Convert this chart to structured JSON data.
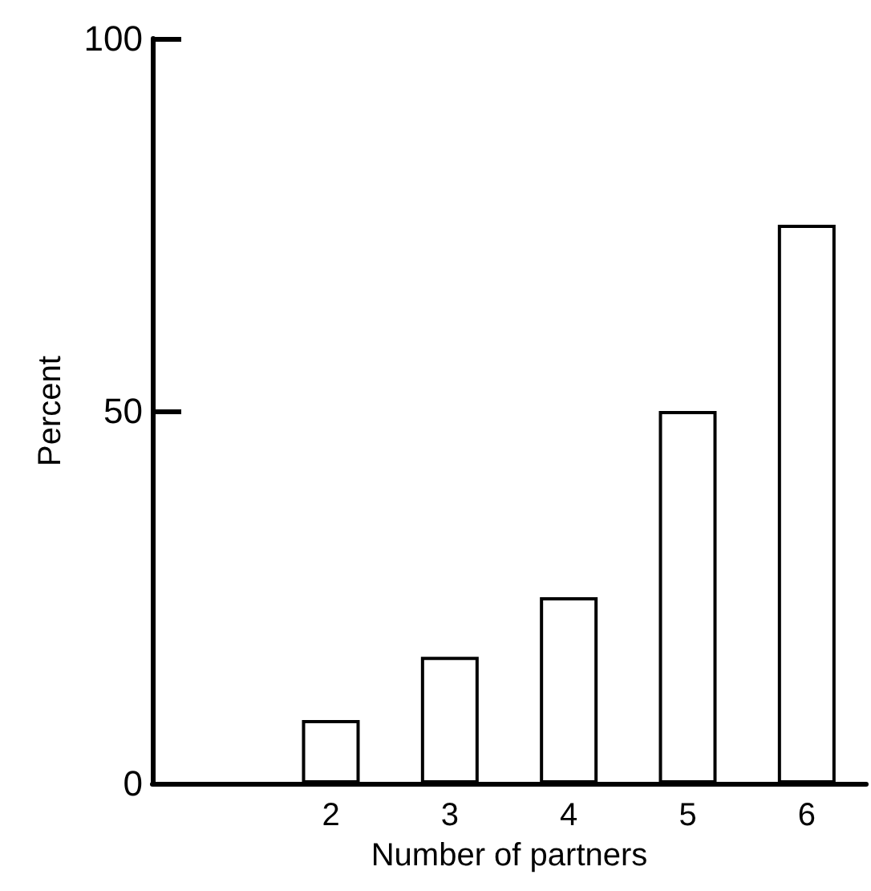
{
  "chart_data": {
    "type": "bar",
    "xlabel": "Number of partners",
    "ylabel": "Percent",
    "categories": [
      null,
      "2",
      "3",
      "4",
      "5",
      "6"
    ],
    "values": [
      null,
      8.5,
      17,
      25,
      50,
      75
    ],
    "color": "#ffffff",
    "ylim": [
      0,
      100
    ],
    "yticks": [
      0,
      50,
      100
    ],
    "grid": false
  }
}
